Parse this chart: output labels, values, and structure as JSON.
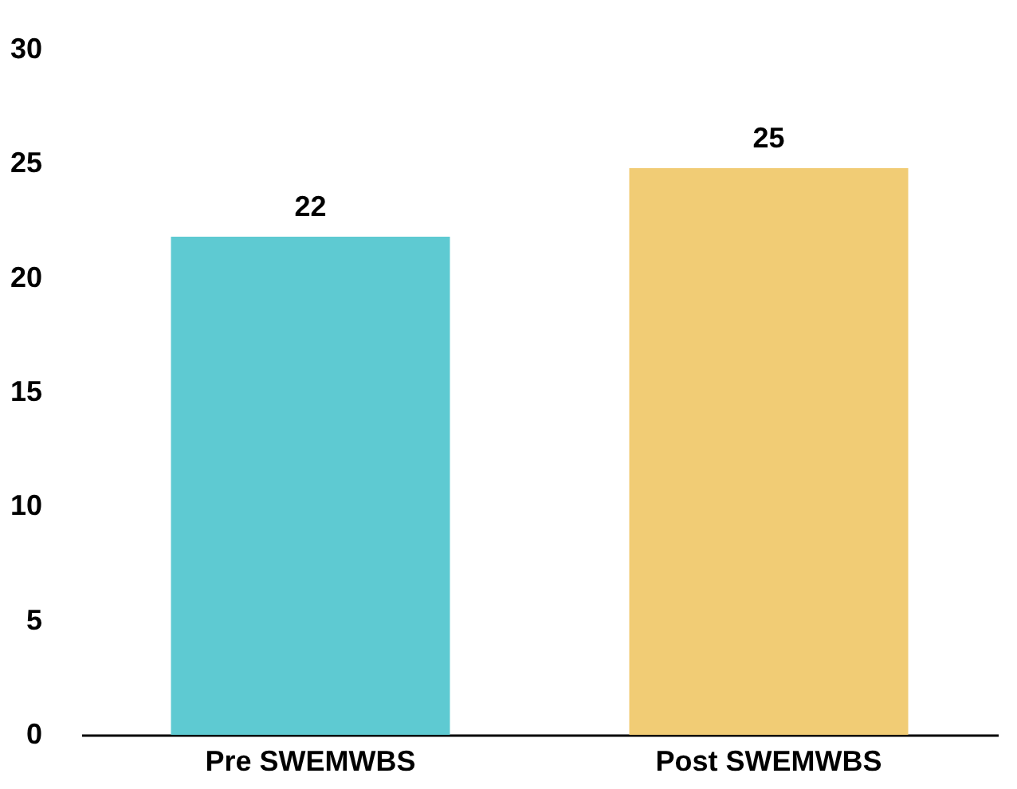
{
  "chart_data": {
    "type": "bar",
    "categories": [
      "Pre SWEMWBS",
      "Post SWEMWBS"
    ],
    "values": [
      21.8,
      24.8
    ],
    "value_labels": [
      "22",
      "25"
    ],
    "colors": [
      "#5ecad2",
      "#f1cc75"
    ],
    "ylim": [
      0,
      30
    ],
    "yticks": [
      0,
      5,
      10,
      15,
      20,
      25,
      30
    ],
    "grid": false
  }
}
